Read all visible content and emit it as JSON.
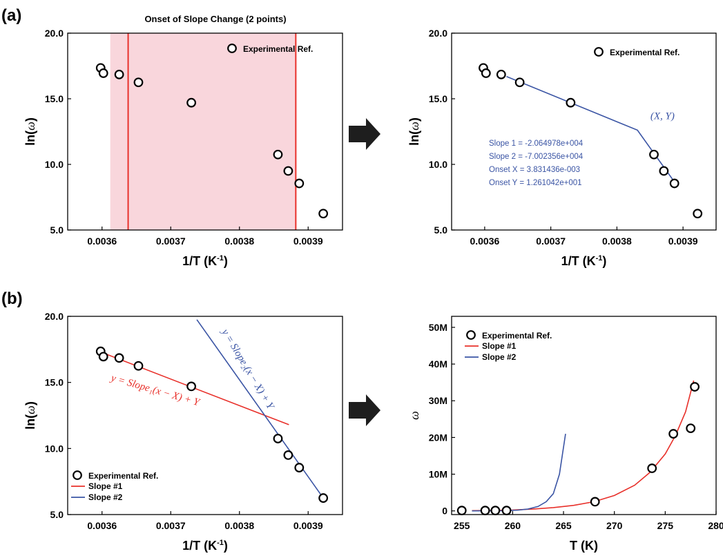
{
  "panel_labels": {
    "a": "(a)",
    "b": "(b)"
  },
  "colors": {
    "slope1": "#e8302a",
    "slope2": "#3a54a4",
    "marker": "#000000",
    "shade": "#f7c8d0",
    "arrow": "#1e1e1e"
  },
  "arrow_icons": [
    "right-arrow-icon",
    "right-arrow-icon"
  ],
  "chart_data": [
    {
      "id": "a-left",
      "type": "scatter",
      "title": "Onset of Slope Change (2 points)",
      "xlabel": "1/T (K",
      "xlabel_sup": "-1",
      "xlabel_close": ")",
      "ylabel": "ln(",
      "ylabel_sym": "ω",
      "ylabel_close": ")",
      "xlim": [
        0.00355,
        0.00395
      ],
      "ylim": [
        5.0,
        20.0
      ],
      "xticks": [
        "0.0036",
        "0.0037",
        "0.0038",
        "0.0039"
      ],
      "xtick_values": [
        0.0036,
        0.0037,
        0.0038,
        0.0039
      ],
      "yticks": [
        "5.0",
        "10.0",
        "15.0",
        "20.0"
      ],
      "ytick_values": [
        5.0,
        10.0,
        15.0,
        20.0
      ],
      "points": [
        {
          "x": 0.003598,
          "y": 17.35
        },
        {
          "x": 0.003602,
          "y": 16.95
        },
        {
          "x": 0.003625,
          "y": 16.85
        },
        {
          "x": 0.003653,
          "y": 16.25
        },
        {
          "x": 0.00373,
          "y": 14.7
        },
        {
          "x": 0.003856,
          "y": 10.75
        },
        {
          "x": 0.003871,
          "y": 9.5
        },
        {
          "x": 0.003887,
          "y": 8.55
        },
        {
          "x": 0.003922,
          "y": 6.25
        }
      ],
      "legend": {
        "label": "Experimental Ref.",
        "marker": "circle",
        "position": "top-right"
      },
      "shaded_region": [
        0.003638,
        0.003882
      ]
    },
    {
      "id": "a-right",
      "type": "scatter",
      "xlabel": "1/T (K",
      "xlabel_sup": "-1",
      "xlabel_close": ")",
      "ylabel": "ln(",
      "ylabel_sym": "ω",
      "ylabel_close": ")",
      "xlim": [
        0.00355,
        0.00395
      ],
      "ylim": [
        5.0,
        20.0
      ],
      "xticks": [
        "0.0036",
        "0.0037",
        "0.0038",
        "0.0039"
      ],
      "xtick_values": [
        0.0036,
        0.0037,
        0.0038,
        0.0039
      ],
      "yticks": [
        "5.0",
        "10.0",
        "15.0",
        "20.0"
      ],
      "ytick_values": [
        5.0,
        10.0,
        15.0,
        20.0
      ],
      "points": [
        {
          "x": 0.003598,
          "y": 17.35
        },
        {
          "x": 0.003602,
          "y": 16.95
        },
        {
          "x": 0.003625,
          "y": 16.85
        },
        {
          "x": 0.003653,
          "y": 16.25
        },
        {
          "x": 0.00373,
          "y": 14.7
        },
        {
          "x": 0.003856,
          "y": 10.75
        },
        {
          "x": 0.003871,
          "y": 9.5
        },
        {
          "x": 0.003887,
          "y": 8.55
        },
        {
          "x": 0.003922,
          "y": 6.25
        }
      ],
      "fit_line": [
        {
          "x": 0.003633,
          "y": 16.7
        },
        {
          "x": 0.003831,
          "y": 12.61
        },
        {
          "x": 0.00389,
          "y": 8.45
        }
      ],
      "legend": {
        "label": "Experimental Ref.",
        "marker": "circle",
        "position": "top-right"
      },
      "annotation": "(X, Y)",
      "info": [
        "Slope 1 = -2.064978e+004",
        "Slope 2 = -7.002356e+004",
        "Onset X = 3.831436e-003",
        "Onset Y = 1.261042e+001"
      ]
    },
    {
      "id": "b-left",
      "type": "scatter",
      "xlabel": "1/T (K",
      "xlabel_sup": "-1",
      "xlabel_close": ")",
      "ylabel": "ln(",
      "ylabel_sym": "ω",
      "ylabel_close": ")",
      "xlim": [
        0.00355,
        0.00395
      ],
      "ylim": [
        5.0,
        20.0
      ],
      "xticks": [
        "0.0036",
        "0.0037",
        "0.0038",
        "0.0039"
      ],
      "xtick_values": [
        0.0036,
        0.0037,
        0.0038,
        0.0039
      ],
      "yticks": [
        "5.0",
        "10.0",
        "15.0",
        "20.0"
      ],
      "ytick_values": [
        5.0,
        10.0,
        15.0,
        20.0
      ],
      "points": [
        {
          "x": 0.003598,
          "y": 17.35
        },
        {
          "x": 0.003602,
          "y": 16.95
        },
        {
          "x": 0.003625,
          "y": 16.85
        },
        {
          "x": 0.003653,
          "y": 16.25
        },
        {
          "x": 0.00373,
          "y": 14.7
        },
        {
          "x": 0.003856,
          "y": 10.75
        },
        {
          "x": 0.003871,
          "y": 9.5
        },
        {
          "x": 0.003887,
          "y": 8.55
        },
        {
          "x": 0.003922,
          "y": 6.25
        }
      ],
      "series": [
        {
          "name": "Slope #1",
          "color": "#e8302a",
          "points": [
            {
              "x": 0.003598,
              "y": 17.3
            },
            {
              "x": 0.003872,
              "y": 11.8
            }
          ]
        },
        {
          "name": "Slope #2",
          "color": "#3a54a4",
          "points": [
            {
              "x": 0.003738,
              "y": 19.75
            },
            {
              "x": 0.003922,
              "y": 6.25
            }
          ]
        }
      ],
      "legend": {
        "label": "Experimental Ref.",
        "marker": "circle",
        "position": "bottom-left"
      },
      "equations": [
        "y = Slope₁(x − X) + Y",
        "y = Slope₂(x − X) + Y"
      ]
    },
    {
      "id": "b-right",
      "type": "scatter",
      "xlabel": "T (K)",
      "ylabel_sym": "ω",
      "xlim": [
        254,
        280
      ],
      "ylim": [
        -1,
        53
      ],
      "xticks": [
        "255",
        "260",
        "265",
        "270",
        "275",
        "280"
      ],
      "xtick_values": [
        255,
        260,
        265,
        270,
        275,
        280
      ],
      "yticks": [
        "0",
        "10M",
        "20M",
        "30M",
        "40M",
        "50M"
      ],
      "ytick_values": [
        0,
        10,
        20,
        30,
        40,
        50
      ],
      "yunit": "M",
      "points": [
        {
          "x": 255.0,
          "y": 0.1
        },
        {
          "x": 257.3,
          "y": 0.1
        },
        {
          "x": 258.3,
          "y": 0.1
        },
        {
          "x": 259.4,
          "y": 0.1
        },
        {
          "x": 268.1,
          "y": 2.5
        },
        {
          "x": 273.7,
          "y": 11.6
        },
        {
          "x": 275.8,
          "y": 21.0
        },
        {
          "x": 277.5,
          "y": 22.5
        },
        {
          "x": 277.9,
          "y": 33.8
        }
      ],
      "series": [
        {
          "name": "Slope #1",
          "color": "#e8302a",
          "points": [
            {
              "x": 256.0,
              "y": 0.08
            },
            {
              "x": 258.0,
              "y": 0.13
            },
            {
              "x": 260.0,
              "y": 0.24
            },
            {
              "x": 262.0,
              "y": 0.5
            },
            {
              "x": 264.0,
              "y": 0.9
            },
            {
              "x": 266.0,
              "y": 1.5
            },
            {
              "x": 268.0,
              "y": 2.5
            },
            {
              "x": 270.0,
              "y": 4.2
            },
            {
              "x": 272.0,
              "y": 7.0
            },
            {
              "x": 273.5,
              "y": 10.5
            },
            {
              "x": 275.0,
              "y": 15.5
            },
            {
              "x": 276.0,
              "y": 20.5
            },
            {
              "x": 277.0,
              "y": 27.0
            },
            {
              "x": 277.8,
              "y": 35.5
            }
          ]
        },
        {
          "name": "Slope #2",
          "color": "#3a54a4",
          "points": [
            {
              "x": 256.0,
              "y": 0.0
            },
            {
              "x": 259.0,
              "y": 0.05
            },
            {
              "x": 260.5,
              "y": 0.2
            },
            {
              "x": 261.5,
              "y": 0.5
            },
            {
              "x": 262.5,
              "y": 1.2
            },
            {
              "x": 263.3,
              "y": 2.5
            },
            {
              "x": 264.0,
              "y": 4.7
            },
            {
              "x": 264.6,
              "y": 10.0
            },
            {
              "x": 265.2,
              "y": 21.0
            }
          ]
        }
      ],
      "legend": {
        "label": "Experimental Ref.",
        "marker": "circle",
        "position": "top-left"
      }
    }
  ]
}
